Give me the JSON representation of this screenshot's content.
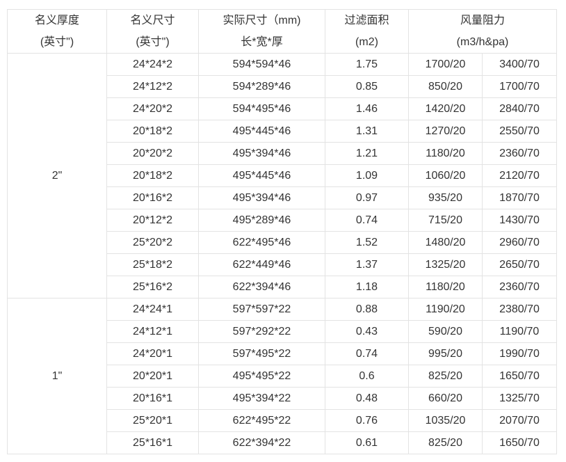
{
  "headers": {
    "thickness": [
      "名义厚度",
      "(英寸\")"
    ],
    "nominal_size": [
      "名义尺寸",
      "(英寸\")"
    ],
    "actual_size": [
      "实际尺寸（mm)",
      "长*宽*厚"
    ],
    "filter_area": [
      "过滤面积",
      "(m2)"
    ],
    "airflow": [
      "风量阻力",
      "(m3/h&pa)"
    ]
  },
  "groups": [
    {
      "thickness": "2\"",
      "rows": [
        [
          "24*24*2",
          "594*594*46",
          "1.75",
          "1700/20",
          "3400/70"
        ],
        [
          "24*12*2",
          "594*289*46",
          "0.85",
          "850/20",
          "1700/70"
        ],
        [
          "24*20*2",
          "594*495*46",
          "1.46",
          "1420/20",
          "2840/70"
        ],
        [
          "20*18*2",
          "495*445*46",
          "1.31",
          "1270/20",
          "2550/70"
        ],
        [
          "20*20*2",
          "495*394*46",
          "1.21",
          "1180/20",
          "2360/70"
        ],
        [
          "20*18*2",
          "495*445*46",
          "1.09",
          "1060/20",
          "2120/70"
        ],
        [
          "20*16*2",
          "495*394*46",
          "0.97",
          "935/20",
          "1870/70"
        ],
        [
          "20*12*2",
          "495*289*46",
          "0.74",
          "715/20",
          "1430/70"
        ],
        [
          "25*20*2",
          "622*495*46",
          "1.52",
          "1480/20",
          "2960/70"
        ],
        [
          "25*18*2",
          "622*449*46",
          "1.37",
          "1325/20",
          "2650/70"
        ],
        [
          "25*16*2",
          "622*394*46",
          "1.18",
          "1180/20",
          "2360/70"
        ]
      ]
    },
    {
      "thickness": "1\"",
      "rows": [
        [
          "24*24*1",
          "597*597*22",
          "0.88",
          "1190/20",
          "2380/70"
        ],
        [
          "24*12*1",
          "597*292*22",
          "0.43",
          "590/20",
          "1190/70"
        ],
        [
          "24*20*1",
          "597*495*22",
          "0.74",
          "995/20",
          "1990/70"
        ],
        [
          "20*20*1",
          "495*495*22",
          "0.6",
          "825/20",
          "1650/70"
        ],
        [
          "20*16*1",
          "495*394*22",
          "0.48",
          "660/20",
          "1325/70"
        ],
        [
          "25*20*1",
          "622*495*22",
          "0.76",
          "1035/20",
          "2070/70"
        ],
        [
          "25*16*1",
          "622*394*22",
          "0.61",
          "825/20",
          "1650/70"
        ]
      ]
    }
  ]
}
